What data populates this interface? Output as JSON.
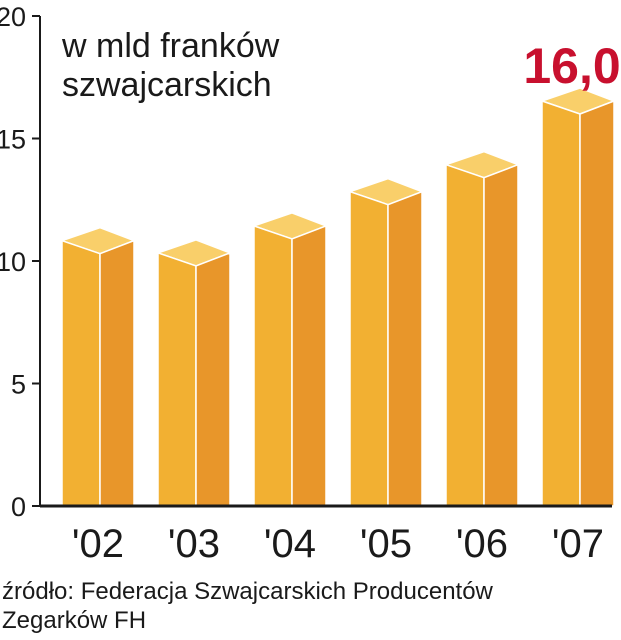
{
  "chart_data": {
    "type": "bar",
    "title": "w mld franków szwajcarskich",
    "title_lines": [
      "w mld franków",
      "szwajcarskich"
    ],
    "categories": [
      "'02",
      "'03",
      "'04",
      "'05",
      "'06",
      "'07"
    ],
    "values": [
      10.3,
      9.8,
      10.9,
      12.3,
      13.4,
      16.0
    ],
    "highlight_label": "16,0",
    "highlight_index": 5,
    "ylim": [
      0,
      20
    ],
    "yticks": [
      0,
      5,
      10,
      15,
      20
    ],
    "grid": false,
    "colors": {
      "bar_front": "#f2b032",
      "bar_side": "#e8962a",
      "bar_top": "#f9cf6a",
      "highlight_text": "#c8102e",
      "axis": "#1a1a1a"
    }
  },
  "source_lines": [
    "źródło: Federacja Szwajcarskich Producentów",
    "Zegarków FH"
  ]
}
